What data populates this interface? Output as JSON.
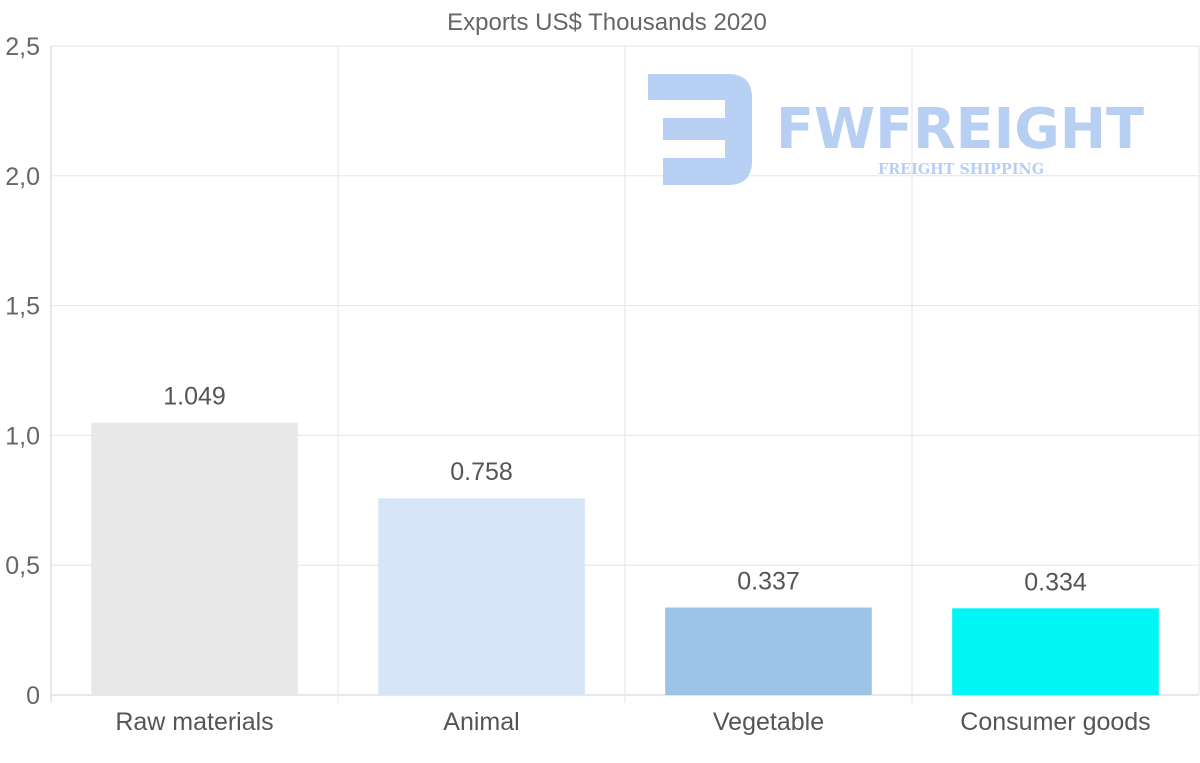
{
  "chart_data": {
    "type": "bar",
    "title": "Exports US$ Thousands 2020",
    "categories": [
      "Raw materials",
      "Animal",
      "Vegetable",
      "Consumer goods"
    ],
    "values": [
      1.049,
      0.758,
      0.337,
      0.334
    ],
    "value_labels": [
      "1.049",
      "0.758",
      "0.337",
      "0.334"
    ],
    "bar_colors": [
      "#e8e8e8",
      "#d6e6f8",
      "#9dc3e6",
      "#00f5f5"
    ],
    "ylim": [
      0,
      2.5
    ],
    "yticks": [
      0,
      0.5,
      1.0,
      1.5,
      2.0,
      2.5
    ],
    "ytick_labels": [
      "0",
      "0,5",
      "1,0",
      "1,5",
      "2,0",
      "2,5"
    ],
    "xlabel": "",
    "ylabel": "",
    "grid": true,
    "legend": "none"
  },
  "watermark": {
    "brand": "FWFREIGHT",
    "tagline": "FREIGHT SHIPPING",
    "color": "#b3cdf3"
  },
  "colors": {
    "grid": "#e6e6e6",
    "axis": "#d0d0d0",
    "text": "#666666"
  }
}
